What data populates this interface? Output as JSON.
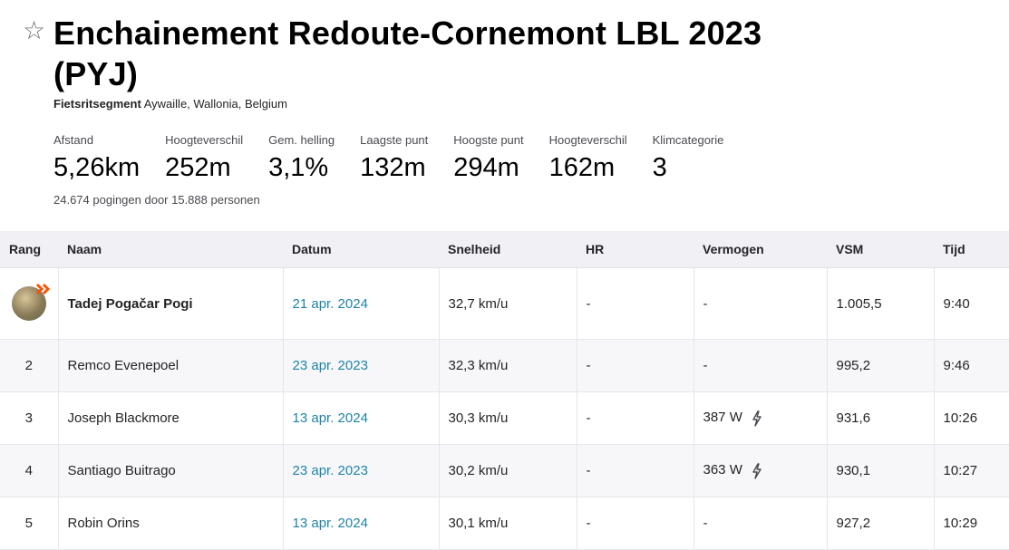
{
  "segment": {
    "title": "Enchainement Redoute-Cornemont LBL 2023 (PYJ)",
    "type_label": "Fietsritsegment",
    "location": "Aywaille, Wallonia, Belgium",
    "attempts_text": "24.674 pogingen door 15.888 personen"
  },
  "stats": [
    {
      "label": "Afstand",
      "value": "5,26km"
    },
    {
      "label": "Hoogteverschil",
      "value": "252m"
    },
    {
      "label": "Gem. helling",
      "value": "3,1%"
    },
    {
      "label": "Laagste punt",
      "value": "132m"
    },
    {
      "label": "Hoogste punt",
      "value": "294m"
    },
    {
      "label": "Hoogteverschil",
      "value": "162m"
    },
    {
      "label": "Klimcategorie",
      "value": "3"
    }
  ],
  "table": {
    "headers": {
      "rank": "Rang",
      "name": "Naam",
      "date": "Datum",
      "speed": "Snelheid",
      "hr": "HR",
      "power": "Vermogen",
      "vam": "VSM",
      "time": "Tijd"
    },
    "rows": [
      {
        "rank": "",
        "name": "Tadej Pogačar Pogi",
        "date": "21 apr. 2024",
        "speed": "32,7 km/u",
        "hr": "-",
        "power": "-",
        "vam": "1.005,5",
        "time": "9:40"
      },
      {
        "rank": "2",
        "name": "Remco Evenepoel",
        "date": "23 apr. 2023",
        "speed": "32,3 km/u",
        "hr": "-",
        "power": "-",
        "vam": "995,2",
        "time": "9:46"
      },
      {
        "rank": "3",
        "name": "Joseph Blackmore",
        "date": "13 apr. 2024",
        "speed": "30,3 km/u",
        "hr": "-",
        "power": "387 W",
        "vam": "931,6",
        "time": "10:26"
      },
      {
        "rank": "4",
        "name": "Santiago Buitrago",
        "date": "23 apr. 2023",
        "speed": "30,2 km/u",
        "hr": "-",
        "power": "363 W",
        "vam": "930,1",
        "time": "10:27"
      },
      {
        "rank": "5",
        "name": "Robin Orins",
        "date": "13 apr. 2024",
        "speed": "30,1 km/u",
        "hr": "-",
        "power": "-",
        "vam": "927,2",
        "time": "10:29"
      }
    ]
  },
  "icons": {
    "favorite": "star-outline-icon",
    "power_meter": "lightning-bolt-icon",
    "leader_avatar": "avatar-with-crown-badge",
    "accent_color": "#fc5200",
    "link_color": "#1f84a8"
  }
}
